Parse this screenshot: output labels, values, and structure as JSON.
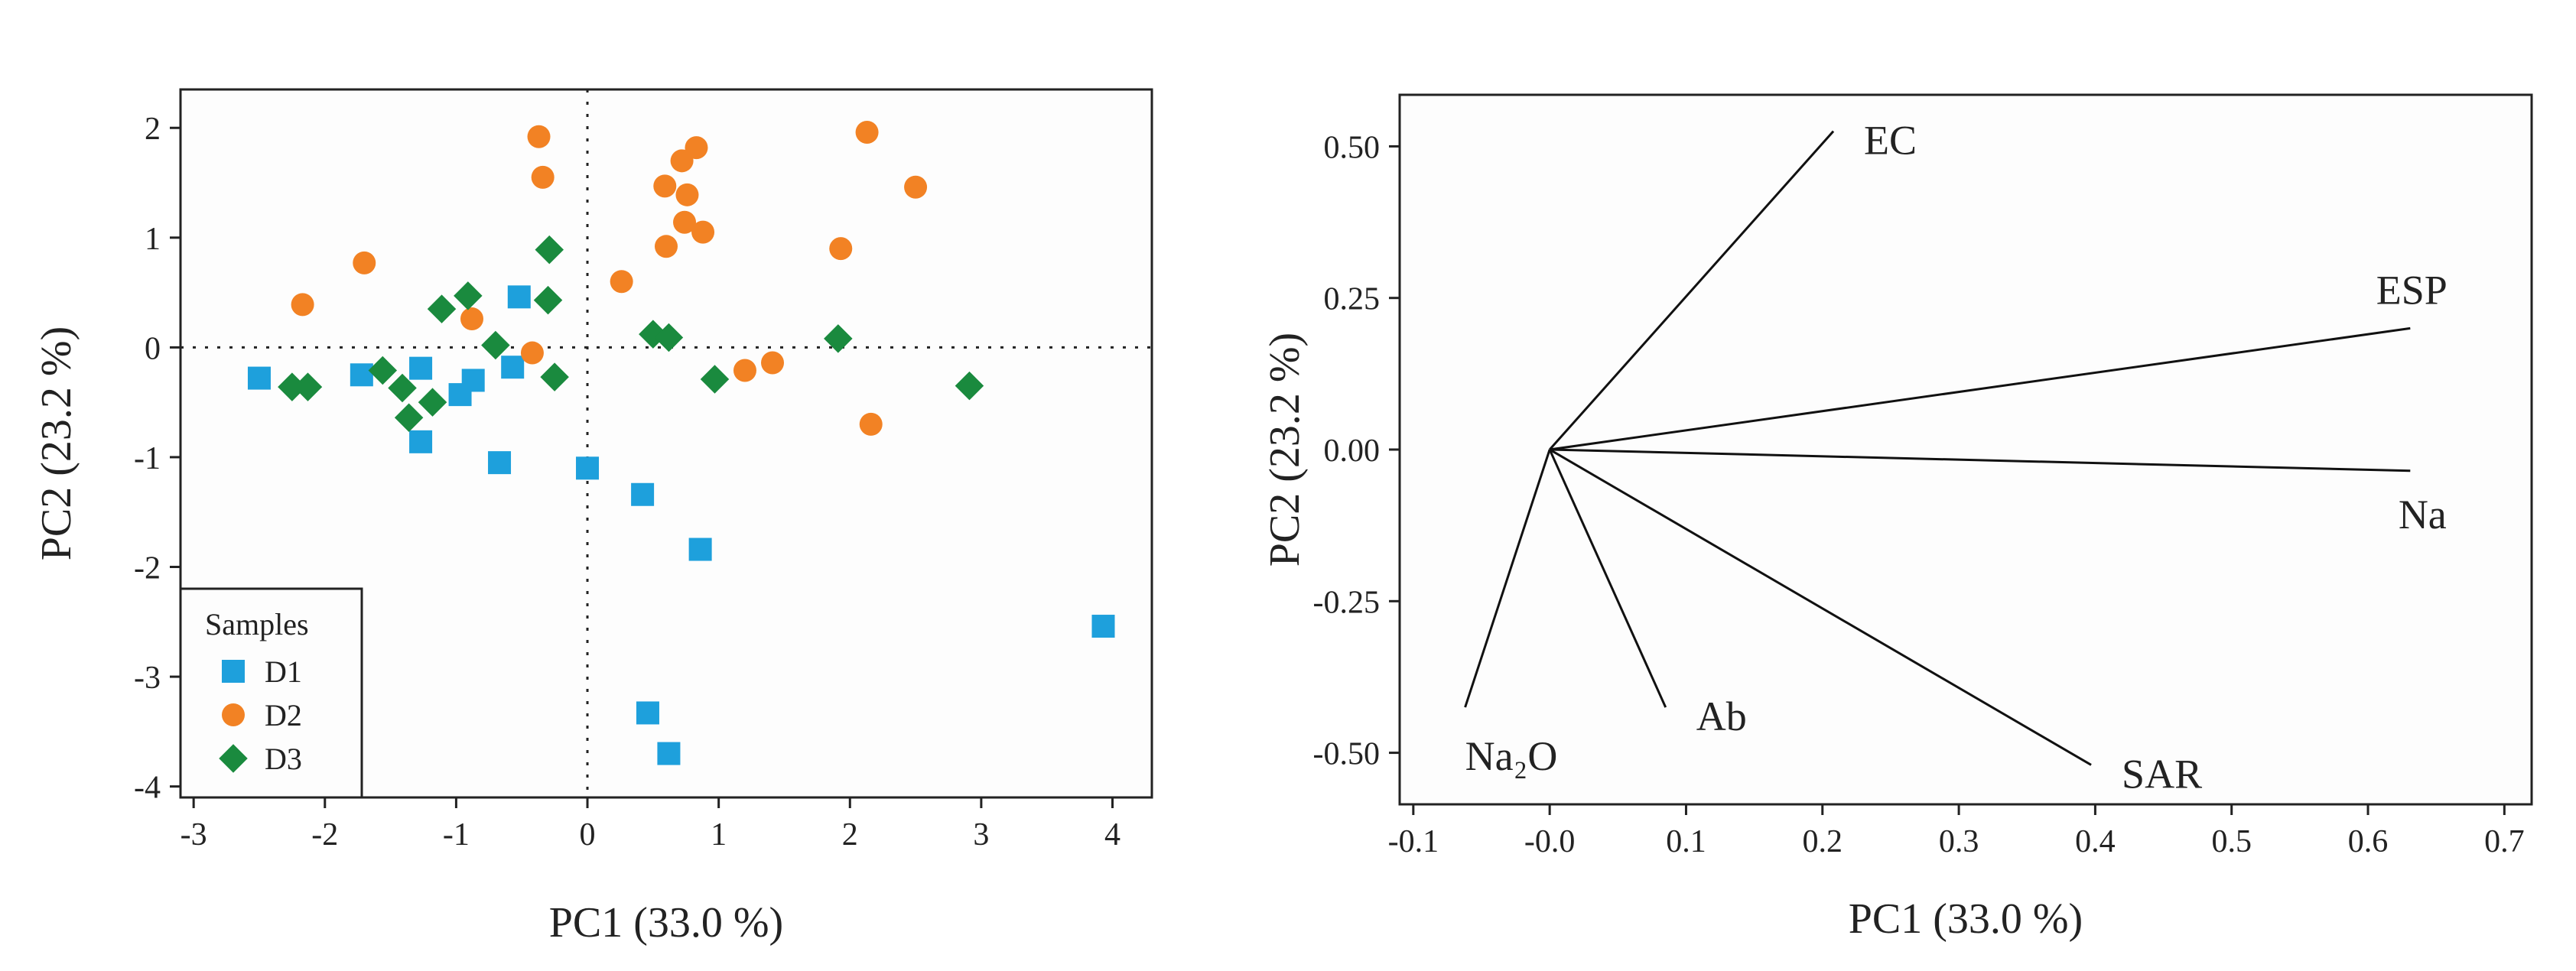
{
  "chart_data": [
    {
      "type": "scatter",
      "title": "",
      "xlabel": "PC1 (33.0 %)",
      "ylabel": "PC2 (23.2 %)",
      "xlim": [
        -3.1,
        4.3
      ],
      "ylim": [
        -4.1,
        2.35
      ],
      "xticks": [
        -3,
        -2,
        -1,
        0,
        1,
        2,
        3,
        4
      ],
      "yticks": [
        -4,
        -3,
        -2,
        -1,
        0,
        1,
        2
      ],
      "reference_lines": {
        "x": 0,
        "y": 0,
        "style": "dotted"
      },
      "legend": {
        "title": "Samples",
        "position": "bottom-left"
      },
      "series": [
        {
          "name": "D1",
          "marker": "square",
          "color": "#1ea0dc",
          "points": [
            [
              -2.5,
              -0.28
            ],
            [
              -1.72,
              -0.25
            ],
            [
              -1.27,
              -0.19
            ],
            [
              -1.27,
              -0.86
            ],
            [
              -0.97,
              -0.43
            ],
            [
              -0.87,
              -0.3
            ],
            [
              -0.67,
              -1.05
            ],
            [
              -0.57,
              -0.18
            ],
            [
              -0.52,
              0.46
            ],
            [
              0.0,
              -1.1
            ],
            [
              0.42,
              -1.34
            ],
            [
              0.46,
              -3.33
            ],
            [
              0.62,
              -3.7
            ],
            [
              0.86,
              -1.84
            ],
            [
              3.93,
              -2.54
            ]
          ]
        },
        {
          "name": "D2",
          "marker": "circle",
          "color": "#f28224",
          "points": [
            [
              -2.17,
              0.39
            ],
            [
              -1.7,
              0.77
            ],
            [
              -0.88,
              0.26
            ],
            [
              -0.42,
              -0.05
            ],
            [
              -0.37,
              1.92
            ],
            [
              -0.34,
              1.55
            ],
            [
              0.26,
              0.6
            ],
            [
              0.59,
              1.47
            ],
            [
              0.6,
              0.92
            ],
            [
              0.72,
              1.7
            ],
            [
              0.74,
              1.14
            ],
            [
              0.76,
              1.39
            ],
            [
              0.83,
              1.82
            ],
            [
              0.88,
              1.05
            ],
            [
              1.2,
              -0.21
            ],
            [
              1.41,
              -0.14
            ],
            [
              1.93,
              0.9
            ],
            [
              2.13,
              1.96
            ],
            [
              2.16,
              -0.7
            ],
            [
              2.5,
              1.46
            ]
          ]
        },
        {
          "name": "D3",
          "marker": "diamond",
          "color": "#1a8a3e",
          "points": [
            [
              -2.25,
              -0.36
            ],
            [
              -2.13,
              -0.36
            ],
            [
              -1.56,
              -0.21
            ],
            [
              -1.41,
              -0.37
            ],
            [
              -1.36,
              -0.64
            ],
            [
              -1.18,
              -0.5
            ],
            [
              -1.11,
              0.35
            ],
            [
              -0.91,
              0.47
            ],
            [
              -0.7,
              0.02
            ],
            [
              -0.3,
              0.43
            ],
            [
              -0.29,
              0.89
            ],
            [
              -0.25,
              -0.27
            ],
            [
              0.5,
              0.12
            ],
            [
              0.62,
              0.09
            ],
            [
              0.97,
              -0.29
            ],
            [
              1.91,
              0.08
            ],
            [
              2.91,
              -0.35
            ]
          ]
        }
      ]
    },
    {
      "type": "line",
      "subtype": "loading-vectors",
      "title": "",
      "xlabel": "PC1 (33.0 %)",
      "ylabel": "PC2 (23.2 %)",
      "xlim": [
        -0.11,
        0.72
      ],
      "ylim": [
        -0.585,
        0.585
      ],
      "xticks": [
        -0.1,
        0.0,
        0.1,
        0.2,
        0.3,
        0.4,
        0.5,
        0.6,
        0.7
      ],
      "xtick_labels": [
        "-0.1",
        "-0.0",
        "0.1",
        "0.2",
        "0.3",
        "0.4",
        "0.5",
        "0.6",
        "0.7"
      ],
      "yticks": [
        -0.5,
        -0.25,
        0.0,
        0.25,
        0.5
      ],
      "ytick_labels": [
        "-0.50",
        "-0.25",
        "0.00",
        "0.25",
        "0.50"
      ],
      "origin": [
        0.0,
        0.0
      ],
      "vectors": [
        {
          "name": "EC",
          "label": "EC",
          "x": 0.208,
          "y": 0.525,
          "label_anchor": "right"
        },
        {
          "name": "ESP",
          "label": "ESP",
          "x": 0.631,
          "y": 0.2,
          "label_anchor": "above"
        },
        {
          "name": "Na",
          "label": "Na",
          "x": 0.631,
          "y": -0.035,
          "label_anchor": "below"
        },
        {
          "name": "SAR",
          "label": "SAR",
          "x": 0.397,
          "y": -0.52,
          "label_anchor": "right"
        },
        {
          "name": "Ab",
          "label": "Ab",
          "x": 0.085,
          "y": -0.425,
          "label_anchor": "right"
        },
        {
          "name": "Na2O",
          "label": "Na₂O",
          "x": -0.062,
          "y": -0.425,
          "label_anchor": "below"
        }
      ]
    }
  ]
}
